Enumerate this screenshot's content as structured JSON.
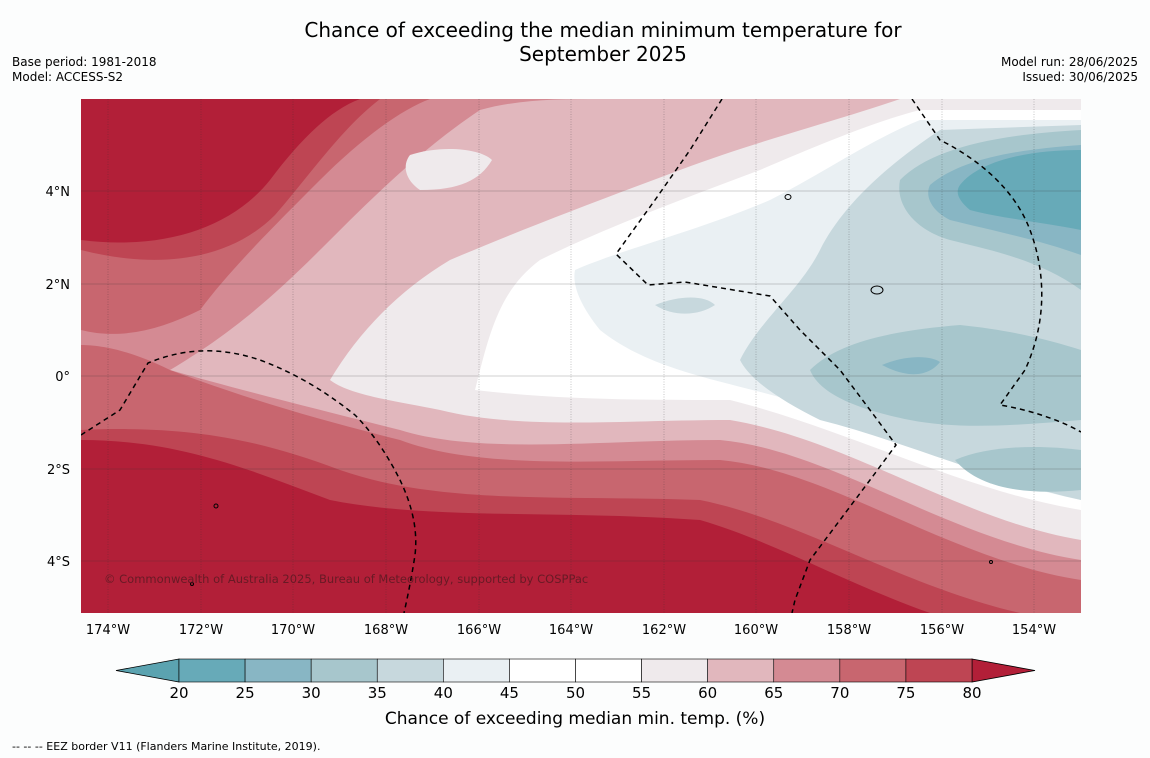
{
  "header": {
    "title_line1": "Chance of exceeding the median minimum temperature for",
    "title_line2": "September 2025",
    "base_period": "Base period: 1981-2018",
    "model": "Model: ACCESS-S2",
    "model_run": "Model run: 28/06/2025",
    "issued": "Issued: 30/06/2025"
  },
  "map": {
    "lat_labels": [
      "4°N",
      "2°N",
      "0°",
      "2°S",
      "4°S"
    ],
    "lon_labels": [
      "174°W",
      "172°W",
      "170°W",
      "168°W",
      "166°W",
      "164°W",
      "162°W",
      "160°W",
      "158°W",
      "156°W",
      "154°W"
    ],
    "copyright": "© Commonwealth of Australia 2025, Bureau of Meteorology, supported by COSPPac"
  },
  "colorbar": {
    "ticks": [
      "20",
      "25",
      "30",
      "35",
      "40",
      "45",
      "50",
      "55",
      "60",
      "65",
      "70",
      "75",
      "80"
    ],
    "colors": [
      "#67aab8",
      "#88b6c4",
      "#a7c6cc",
      "#c7d8dd",
      "#eaf0f3",
      "#ffffff",
      "#ffffff",
      "#efeaec",
      "#e1b7bd",
      "#d48a93",
      "#c8666f",
      "#be4553"
    ],
    "below_color": "#5ba3b0",
    "above_color": "#b21f38",
    "label": "Chance of exceeding median min. temp. (%)"
  },
  "footnote": "--  --  -- EEZ border V11 (Flanders Marine Institute, 2019)."
}
